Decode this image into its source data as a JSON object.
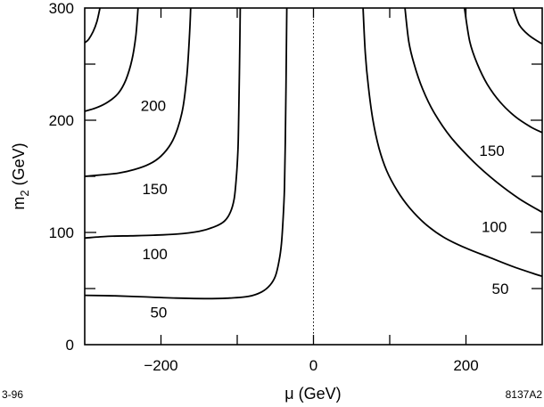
{
  "chart_data": {
    "type": "line",
    "xlabel": "μ  (GeV)",
    "ylabel_main": "m",
    "ylabel_sub": "2",
    "ylabel_tail": "  (GeV)",
    "xlim": [
      -300,
      300
    ],
    "ylim": [
      0,
      300
    ],
    "xticks": [
      -200,
      0,
      200
    ],
    "xtick_labels": [
      "−200",
      "0",
      "200"
    ],
    "yticks": [
      0,
      100,
      200,
      300
    ],
    "ytick_labels": [
      "0",
      "100",
      "200",
      "300"
    ],
    "grid": false,
    "reference_line": {
      "x": 0,
      "style": "dotted"
    },
    "series": [
      {
        "name": "50",
        "segments": [
          [
            [
              -300,
              44
            ],
            [
              -260,
              43.5
            ],
            [
              -220,
              42.5
            ],
            [
              -180,
              41.5
            ],
            [
              -140,
              41
            ],
            [
              -110,
              41.5
            ],
            [
              -85,
              43
            ],
            [
              -68,
              47
            ],
            [
              -57,
              53
            ],
            [
              -50,
              61
            ],
            [
              -45,
              75
            ],
            [
              -42,
              90
            ],
            [
              -40,
              110
            ],
            [
              -38,
              140
            ],
            [
              -37,
              180
            ],
            [
              -36,
              230
            ],
            [
              -35,
              300
            ]
          ],
          [
            [
              65,
              300
            ],
            [
              68,
              260
            ],
            [
              72,
              230
            ],
            [
              78,
              200
            ],
            [
              86,
              175
            ],
            [
              96,
              155
            ],
            [
              110,
              137
            ],
            [
              126,
              122
            ],
            [
              146,
              108
            ],
            [
              170,
              96
            ],
            [
              200,
              86
            ],
            [
              230,
              78
            ],
            [
              260,
              70
            ],
            [
              290,
              63
            ],
            [
              300,
              61
            ]
          ]
        ]
      },
      {
        "name": "100",
        "segments": [
          [
            [
              -300,
              95
            ],
            [
              -270,
              96.5
            ],
            [
              -240,
              97
            ],
            [
              -210,
              97.5
            ],
            [
              -180,
              98.5
            ],
            [
              -150,
              101
            ],
            [
              -130,
              105
            ],
            [
              -117,
              110
            ],
            [
              -109,
              118
            ],
            [
              -104,
              130
            ],
            [
              -101,
              150
            ],
            [
              -99,
              175
            ],
            [
              -98,
              205
            ],
            [
              -97,
              250
            ],
            [
              -96,
              300
            ]
          ],
          [
            [
              120,
              300
            ],
            [
              125,
              270
            ],
            [
              132,
              250
            ],
            [
              143,
              228
            ],
            [
              158,
              207
            ],
            [
              180,
              185
            ],
            [
              210,
              163
            ],
            [
              240,
              145
            ],
            [
              270,
              130
            ],
            [
              300,
              118
            ]
          ]
        ]
      },
      {
        "name": "150",
        "segments": [
          [
            [
              -300,
              150
            ],
            [
              -275,
              151.5
            ],
            [
              -255,
              153
            ],
            [
              -235,
              156
            ],
            [
              -215,
              161
            ],
            [
              -200,
              168
            ],
            [
              -187,
              179
            ],
            [
              -178,
              193
            ],
            [
              -171,
              212
            ],
            [
              -166,
              240
            ],
            [
              -163,
              270
            ],
            [
              -161,
              300
            ]
          ],
          [
            [
              198,
              300
            ],
            [
              205,
              270
            ],
            [
              215,
              250
            ],
            [
              228,
              232
            ],
            [
              245,
              216
            ],
            [
              265,
              203
            ],
            [
              285,
              194
            ],
            [
              300,
              189
            ]
          ]
        ]
      },
      {
        "name": "200",
        "segments": [
          [
            [
              -300,
              208
            ],
            [
              -285,
              211
            ],
            [
              -270,
              216
            ],
            [
              -256,
              224
            ],
            [
              -246,
              236
            ],
            [
              -238,
              254
            ],
            [
              -233,
              275
            ],
            [
              -230,
              300
            ]
          ],
          [
            [
              262,
              300
            ],
            [
              270,
              285
            ],
            [
              282,
              276
            ],
            [
              295,
              270
            ],
            [
              300,
              268
            ]
          ]
        ]
      },
      {
        "name": "",
        "segments": [
          [
            [
              -300,
              269
            ],
            [
              -295,
              272
            ],
            [
              -289,
              279
            ],
            [
              -284,
              288
            ],
            [
              -280,
              300
            ]
          ]
        ]
      }
    ],
    "annotations": [
      {
        "text": "200",
        "x": -210,
        "y": 213
      },
      {
        "text": "150",
        "x": -208,
        "y": 139
      },
      {
        "text": "100",
        "x": -208,
        "y": 81
      },
      {
        "text": "50",
        "x": -203,
        "y": 29
      },
      {
        "text": "150",
        "x": 234,
        "y": 173
      },
      {
        "text": "100",
        "x": 237,
        "y": 105
      },
      {
        "text": "50",
        "x": 245,
        "y": 50
      }
    ]
  },
  "footer": {
    "left_code": "3-96",
    "right_code": "8137A2"
  }
}
